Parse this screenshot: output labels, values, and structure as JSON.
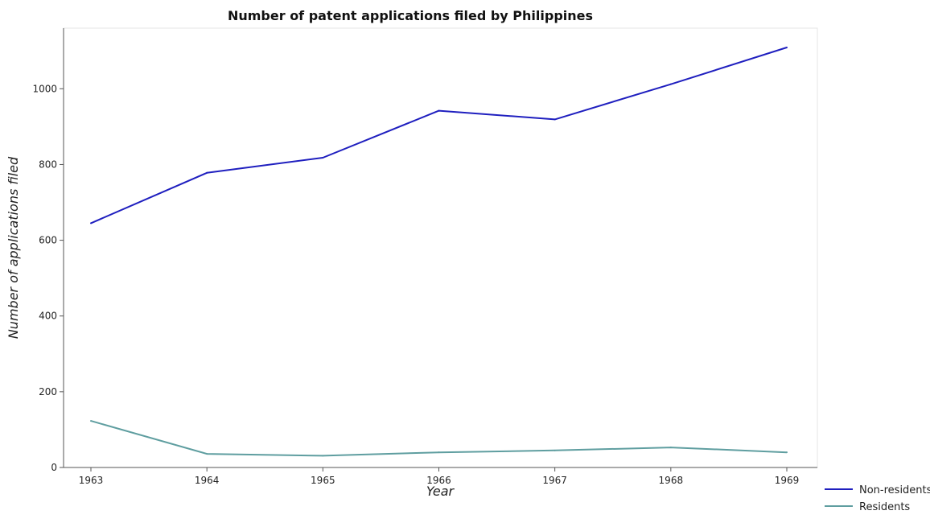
{
  "chart_data": {
    "type": "line",
    "title": "Number of patent applications filed by Philippines",
    "xlabel": "Year",
    "ylabel": "Number of applications filed",
    "x": [
      "1963",
      "1964",
      "1965",
      "1966",
      "1967",
      "1968",
      "1969"
    ],
    "yticks": [
      "0",
      "200",
      "400",
      "600",
      "800",
      "1000"
    ],
    "ylim": [
      0,
      1160
    ],
    "grid": false,
    "legend_position": "bottom-right",
    "series": [
      {
        "name": "Non-residents",
        "color": "#1f1fbf",
        "values": [
          645,
          778,
          818,
          942,
          919,
          1012,
          1109
        ]
      },
      {
        "name": "Residents",
        "color": "#5f9ea0",
        "values": [
          123,
          36,
          31,
          40,
          45,
          53,
          40
        ]
      }
    ]
  }
}
